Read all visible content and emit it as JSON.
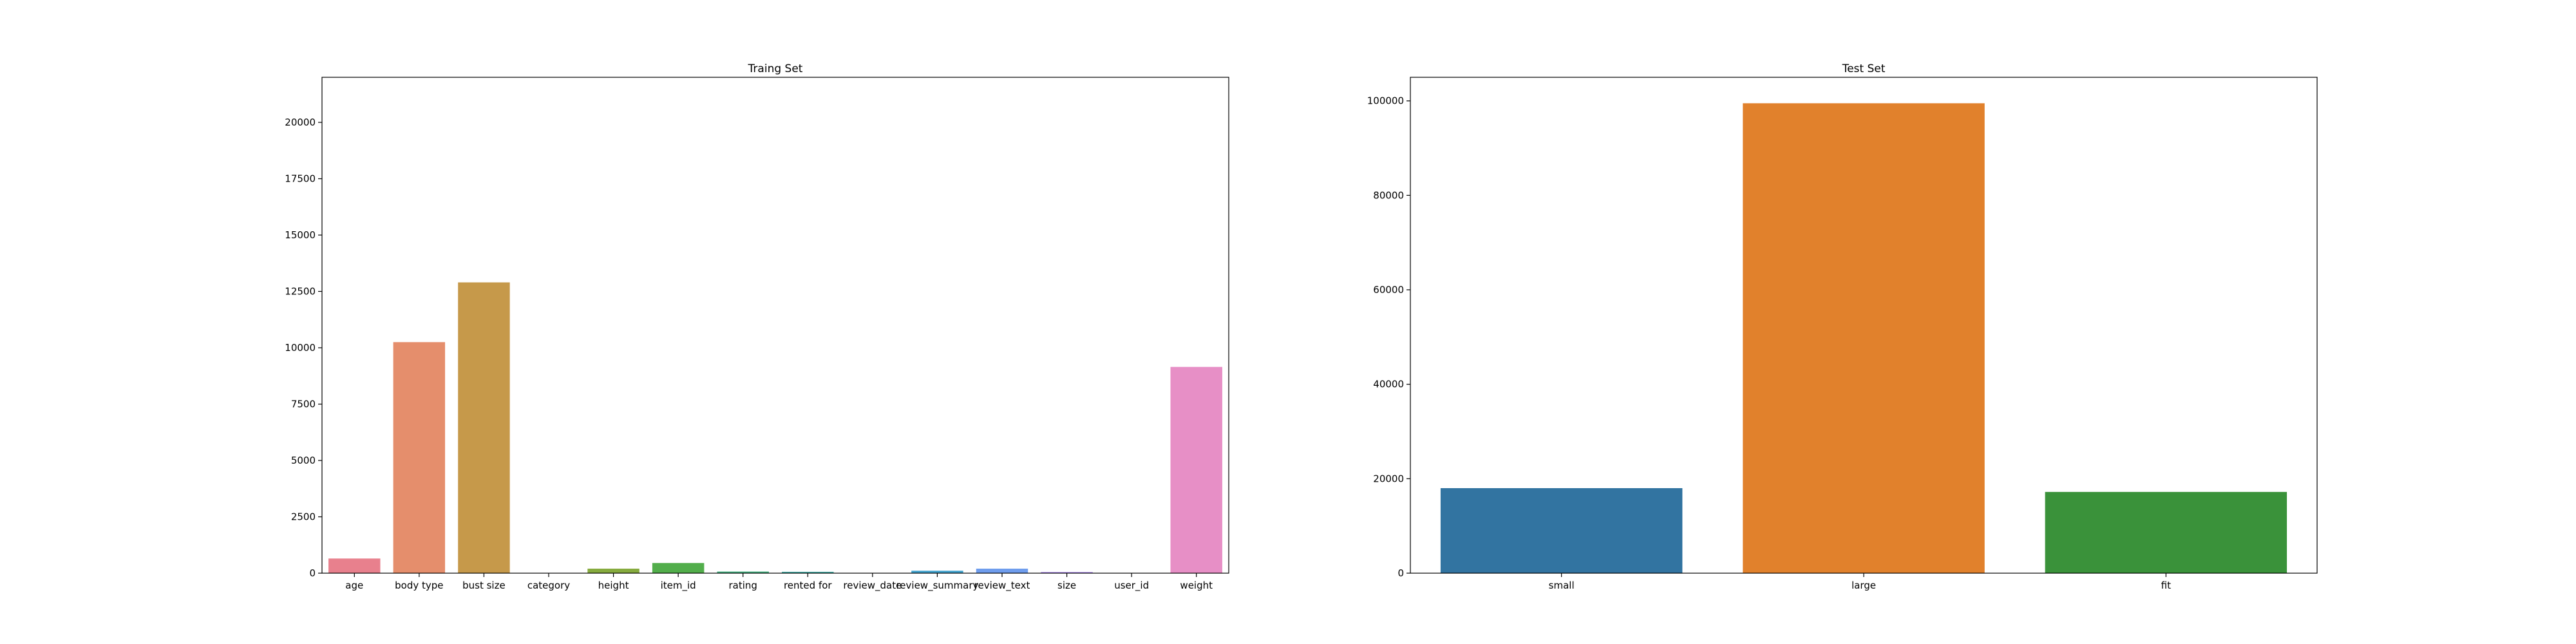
{
  "chart_data": [
    {
      "type": "bar",
      "title": "Traing Set",
      "xlabel": "",
      "ylabel": "",
      "ylim": [
        0,
        22000
      ],
      "yticks": [
        0,
        2500,
        5000,
        7500,
        10000,
        12500,
        15000,
        17500,
        20000
      ],
      "grid": false,
      "categories": [
        "age",
        "body type",
        "bust size",
        "category",
        "height",
        "item_id",
        "rating",
        "rented for",
        "review_date",
        "review_summary",
        "review_text",
        "size",
        "user_id",
        "weight"
      ],
      "values": [
        650,
        10250,
        12900,
        0,
        200,
        450,
        70,
        60,
        0,
        110,
        200,
        50,
        0,
        9150
      ],
      "colors": [
        "#e8808d",
        "#e58e6c",
        "#c6994a",
        "#a9a23a",
        "#86ab3e",
        "#52ae4b",
        "#3fae7c",
        "#3fa9a2",
        "#3fa6b7",
        "#43a3cd",
        "#6f9ded",
        "#ad8ced",
        "#e07edb",
        "#e78fc6"
      ]
    },
    {
      "type": "bar",
      "title": "Test Set",
      "xlabel": "",
      "ylabel": "",
      "ylim": [
        0,
        105000
      ],
      "yticks": [
        0,
        20000,
        40000,
        60000,
        80000,
        100000
      ],
      "grid": false,
      "categories": [
        "small",
        "large",
        "fit"
      ],
      "values": [
        18000,
        99500,
        17200
      ],
      "colors": [
        "#3274a1",
        "#e1812c",
        "#3a923a"
      ]
    }
  ]
}
